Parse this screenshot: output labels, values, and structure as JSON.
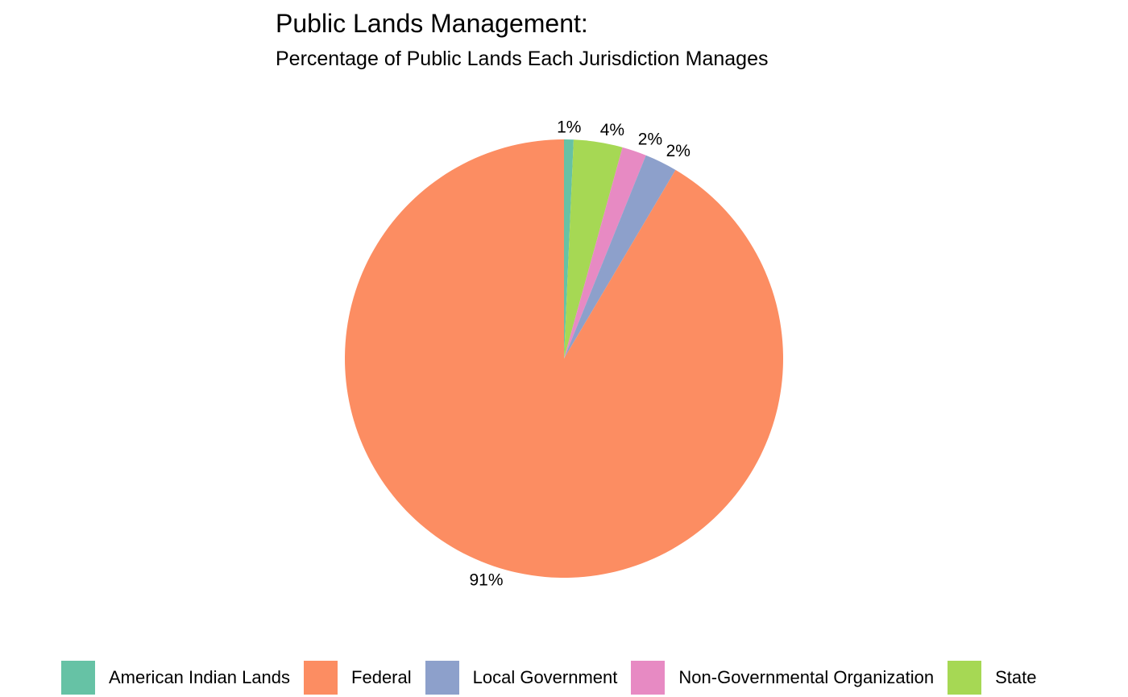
{
  "chart_data": {
    "type": "pie",
    "title": "Public Lands Management:",
    "subtitle": "Percentage of Public Lands Each Jurisdiction Manages",
    "legend_position": "bottom",
    "slices": [
      {
        "name": "American Indian Lands",
        "value": 0.7,
        "label": "1%",
        "color": "#66C2A5"
      },
      {
        "name": "State",
        "value": 3.6,
        "label": "4%",
        "color": "#A6D854"
      },
      {
        "name": "Non-Governmental Organization",
        "value": 1.8,
        "label": "2%",
        "color": "#E78AC3"
      },
      {
        "name": "Local Government",
        "value": 2.4,
        "label": "2%",
        "color": "#8DA0CB"
      },
      {
        "name": "Federal",
        "value": 91.5,
        "label": "91%",
        "color": "#FC8D62"
      }
    ],
    "legend": [
      {
        "name": "American Indian Lands",
        "color": "#66C2A5"
      },
      {
        "name": "Federal",
        "color": "#FC8D62"
      },
      {
        "name": "Local Government",
        "color": "#8DA0CB"
      },
      {
        "name": "Non-Governmental Organization",
        "color": "#E78AC3"
      },
      {
        "name": "State",
        "color": "#A6D854"
      }
    ]
  }
}
